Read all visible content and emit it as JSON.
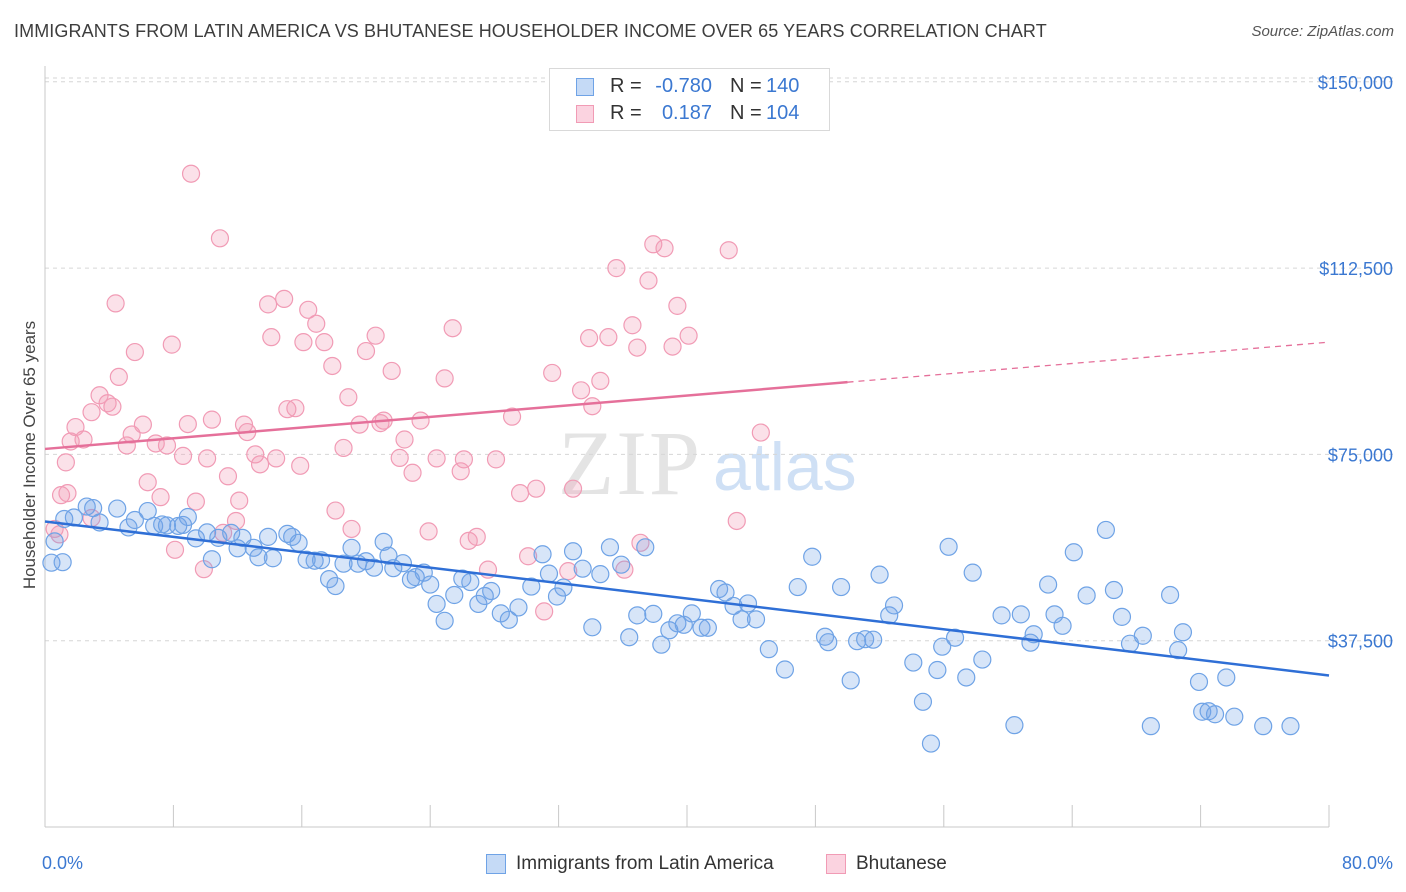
{
  "header": {
    "title": "IMMIGRANTS FROM LATIN AMERICA VS BHUTANESE HOUSEHOLDER INCOME OVER 65 YEARS CORRELATION CHART",
    "source": "Source: ZipAtlas.com"
  },
  "watermark": {
    "zip": "ZIP",
    "atlas": "atlas"
  },
  "stats": [
    {
      "r_label": "R =",
      "r_value": "-0.780",
      "n_label": "N =",
      "n_value": "140",
      "color": "#6fa3e6"
    },
    {
      "r_label": "R =",
      "r_value": "0.187",
      "n_label": "N =",
      "n_value": "104",
      "color": "#f19bb5"
    }
  ],
  "legend": [
    {
      "label": "Immigrants from Latin America",
      "color": "#6fa3e6"
    },
    {
      "label": "Bhutanese",
      "color": "#f19bb5"
    }
  ],
  "chart_data": {
    "type": "scatter",
    "title": "IMMIGRANTS FROM LATIN AMERICA VS BHUTANESE HOUSEHOLDER INCOME OVER 65 YEARS CORRELATION CHART",
    "xlabel": "",
    "ylabel": "Householder Income Over 65 years",
    "xlim": [
      0,
      80
    ],
    "ylim": [
      0,
      156000
    ],
    "x_tick_labels": [
      "0.0%",
      "80.0%"
    ],
    "y_ticks": [
      37500,
      75000,
      112500,
      150000
    ],
    "y_tick_labels": [
      "$37,500",
      "$75,000",
      "$112,500",
      "$150,000"
    ],
    "grid": true,
    "legend_position": "bottom",
    "series": [
      {
        "name": "Immigrants from Latin America",
        "color": "#6fa3e6",
        "trend": {
          "x": [
            0,
            80
          ],
          "y": [
            61500,
            30500
          ],
          "dashed_from": null
        },
        "points": [
          [
            0.4,
            53200
          ],
          [
            0.6,
            57500
          ],
          [
            1.2,
            62000
          ],
          [
            1.8,
            62300
          ],
          [
            2.6,
            64500
          ],
          [
            3.0,
            64200
          ],
          [
            4.5,
            64100
          ],
          [
            5.6,
            61800
          ],
          [
            6.4,
            63600
          ],
          [
            6.8,
            60600
          ],
          [
            7.3,
            60900
          ],
          [
            7.6,
            60700
          ],
          [
            8.3,
            60600
          ],
          [
            8.6,
            60800
          ],
          [
            8.9,
            62400
          ],
          [
            9.4,
            58100
          ],
          [
            10.1,
            59300
          ],
          [
            10.4,
            53900
          ],
          [
            10.8,
            58200
          ],
          [
            11.6,
            59200
          ],
          [
            12.0,
            56100
          ],
          [
            12.3,
            58200
          ],
          [
            13.0,
            56200
          ],
          [
            13.3,
            54300
          ],
          [
            13.9,
            58400
          ],
          [
            14.2,
            54100
          ],
          [
            15.1,
            59000
          ],
          [
            15.4,
            58400
          ],
          [
            15.8,
            57200
          ],
          [
            16.3,
            53800
          ],
          [
            16.8,
            53600
          ],
          [
            17.2,
            53700
          ],
          [
            17.7,
            49900
          ],
          [
            18.1,
            48500
          ],
          [
            18.6,
            53000
          ],
          [
            19.1,
            56200
          ],
          [
            19.5,
            53000
          ],
          [
            20.0,
            53500
          ],
          [
            20.5,
            52200
          ],
          [
            21.1,
            57400
          ],
          [
            21.4,
            54600
          ],
          [
            21.7,
            52100
          ],
          [
            22.3,
            53100
          ],
          [
            22.8,
            49800
          ],
          [
            23.1,
            50300
          ],
          [
            23.6,
            51200
          ],
          [
            24.0,
            48800
          ],
          [
            24.4,
            44900
          ],
          [
            24.9,
            41500
          ],
          [
            25.5,
            46700
          ],
          [
            26.0,
            50000
          ],
          [
            26.5,
            49300
          ],
          [
            27.0,
            44900
          ],
          [
            27.4,
            46500
          ],
          [
            27.8,
            47500
          ],
          [
            28.4,
            43000
          ],
          [
            28.9,
            41700
          ],
          [
            29.5,
            44200
          ],
          [
            30.3,
            48400
          ],
          [
            31.0,
            54900
          ],
          [
            31.4,
            51000
          ],
          [
            31.9,
            46400
          ],
          [
            32.3,
            48200
          ],
          [
            32.9,
            55500
          ],
          [
            33.5,
            52000
          ],
          [
            34.1,
            40200
          ],
          [
            34.6,
            50900
          ],
          [
            35.2,
            56300
          ],
          [
            35.9,
            52800
          ],
          [
            36.4,
            38200
          ],
          [
            36.9,
            42600
          ],
          [
            37.4,
            56300
          ],
          [
            37.9,
            42900
          ],
          [
            38.4,
            36700
          ],
          [
            38.9,
            39600
          ],
          [
            39.4,
            41000
          ],
          [
            39.8,
            40700
          ],
          [
            40.3,
            43000
          ],
          [
            40.9,
            40100
          ],
          [
            41.3,
            40100
          ],
          [
            42.0,
            47900
          ],
          [
            42.4,
            47200
          ],
          [
            42.9,
            44500
          ],
          [
            43.4,
            41800
          ],
          [
            43.8,
            45000
          ],
          [
            44.3,
            41800
          ],
          [
            45.1,
            35800
          ],
          [
            46.1,
            31700
          ],
          [
            46.9,
            48300
          ],
          [
            47.8,
            54400
          ],
          [
            48.6,
            38300
          ],
          [
            48.8,
            37200
          ],
          [
            49.6,
            48300
          ],
          [
            50.2,
            29500
          ],
          [
            50.6,
            37400
          ],
          [
            51.1,
            37800
          ],
          [
            51.6,
            37700
          ],
          [
            52.0,
            50800
          ],
          [
            52.6,
            42600
          ],
          [
            52.9,
            44600
          ],
          [
            54.1,
            33100
          ],
          [
            54.7,
            25200
          ],
          [
            55.2,
            16800
          ],
          [
            55.6,
            31600
          ],
          [
            55.9,
            36300
          ],
          [
            56.3,
            56400
          ],
          [
            56.7,
            38100
          ],
          [
            57.4,
            30100
          ],
          [
            57.8,
            51200
          ],
          [
            58.4,
            33700
          ],
          [
            59.6,
            42600
          ],
          [
            60.4,
            20500
          ],
          [
            60.8,
            42800
          ],
          [
            61.4,
            37100
          ],
          [
            61.6,
            38800
          ],
          [
            62.5,
            48800
          ],
          [
            62.9,
            42800
          ],
          [
            63.4,
            40500
          ],
          [
            64.1,
            55300
          ],
          [
            64.9,
            46600
          ],
          [
            66.1,
            59800
          ],
          [
            66.6,
            47700
          ],
          [
            67.1,
            42300
          ],
          [
            67.6,
            36900
          ],
          [
            68.4,
            38500
          ],
          [
            68.9,
            20300
          ],
          [
            70.1,
            46700
          ],
          [
            70.6,
            35600
          ],
          [
            70.9,
            39200
          ],
          [
            71.9,
            29200
          ],
          [
            72.1,
            23200
          ],
          [
            72.5,
            23300
          ],
          [
            72.9,
            22700
          ],
          [
            73.6,
            30100
          ],
          [
            74.1,
            22200
          ],
          [
            75.9,
            20300
          ],
          [
            77.6,
            20300
          ],
          [
            1.1,
            53300
          ],
          [
            3.4,
            61300
          ],
          [
            5.2,
            60300
          ]
        ]
      },
      {
        "name": "Bhutanese",
        "color": "#f19bb5",
        "trend": {
          "x": [
            0,
            80
          ],
          "y": [
            76100,
            97600
          ],
          "dashed_from": 50
        },
        "points": [
          [
            0.6,
            60000
          ],
          [
            1.0,
            66800
          ],
          [
            1.3,
            73400
          ],
          [
            1.6,
            77600
          ],
          [
            1.9,
            80500
          ],
          [
            2.4,
            78000
          ],
          [
            2.9,
            83500
          ],
          [
            3.4,
            86900
          ],
          [
            3.9,
            85300
          ],
          [
            4.2,
            84600
          ],
          [
            4.4,
            105400
          ],
          [
            4.6,
            90600
          ],
          [
            5.1,
            76800
          ],
          [
            5.4,
            79000
          ],
          [
            5.6,
            95600
          ],
          [
            6.1,
            81000
          ],
          [
            6.4,
            69400
          ],
          [
            6.9,
            77200
          ],
          [
            7.2,
            66400
          ],
          [
            7.6,
            76800
          ],
          [
            7.9,
            97100
          ],
          [
            8.1,
            55800
          ],
          [
            8.6,
            74700
          ],
          [
            8.9,
            81100
          ],
          [
            9.1,
            131500
          ],
          [
            9.4,
            65500
          ],
          [
            9.9,
            51900
          ],
          [
            10.1,
            74200
          ],
          [
            10.4,
            82000
          ],
          [
            10.9,
            118500
          ],
          [
            11.1,
            59200
          ],
          [
            11.4,
            70600
          ],
          [
            11.9,
            61600
          ],
          [
            12.1,
            65700
          ],
          [
            12.4,
            81000
          ],
          [
            12.6,
            79500
          ],
          [
            13.1,
            75000
          ],
          [
            13.4,
            73000
          ],
          [
            13.9,
            105200
          ],
          [
            14.1,
            98600
          ],
          [
            14.4,
            74200
          ],
          [
            14.9,
            106300
          ],
          [
            15.1,
            84100
          ],
          [
            15.6,
            84300
          ],
          [
            15.9,
            72700
          ],
          [
            16.1,
            97600
          ],
          [
            16.4,
            104100
          ],
          [
            16.9,
            101300
          ],
          [
            17.4,
            97600
          ],
          [
            17.9,
            92800
          ],
          [
            18.1,
            63700
          ],
          [
            18.6,
            76300
          ],
          [
            18.9,
            86500
          ],
          [
            19.1,
            60000
          ],
          [
            19.6,
            81000
          ],
          [
            20.0,
            95800
          ],
          [
            20.6,
            98900
          ],
          [
            20.9,
            81300
          ],
          [
            21.1,
            81800
          ],
          [
            21.6,
            91800
          ],
          [
            22.1,
            74300
          ],
          [
            22.4,
            78000
          ],
          [
            22.9,
            71300
          ],
          [
            23.4,
            81800
          ],
          [
            23.9,
            59500
          ],
          [
            24.4,
            74200
          ],
          [
            24.9,
            90300
          ],
          [
            25.4,
            100400
          ],
          [
            25.9,
            71600
          ],
          [
            26.1,
            74000
          ],
          [
            26.4,
            57600
          ],
          [
            26.9,
            58400
          ],
          [
            27.6,
            51800
          ],
          [
            28.1,
            74000
          ],
          [
            29.1,
            82600
          ],
          [
            29.6,
            67200
          ],
          [
            30.1,
            54500
          ],
          [
            30.6,
            68100
          ],
          [
            31.1,
            43400
          ],
          [
            31.6,
            91400
          ],
          [
            32.6,
            51500
          ],
          [
            32.9,
            68100
          ],
          [
            33.4,
            87900
          ],
          [
            33.9,
            98400
          ],
          [
            34.1,
            84700
          ],
          [
            34.6,
            89800
          ],
          [
            35.1,
            98600
          ],
          [
            35.6,
            112500
          ],
          [
            36.1,
            51800
          ],
          [
            36.6,
            101000
          ],
          [
            36.9,
            96500
          ],
          [
            37.1,
            57200
          ],
          [
            37.6,
            110000
          ],
          [
            37.9,
            117300
          ],
          [
            38.6,
            116500
          ],
          [
            39.1,
            96700
          ],
          [
            39.4,
            104900
          ],
          [
            40.1,
            98900
          ],
          [
            42.6,
            116100
          ],
          [
            43.1,
            61600
          ],
          [
            44.6,
            79400
          ],
          [
            2.9,
            62200
          ],
          [
            0.9,
            58900
          ],
          [
            1.4,
            67200
          ]
        ]
      }
    ]
  }
}
